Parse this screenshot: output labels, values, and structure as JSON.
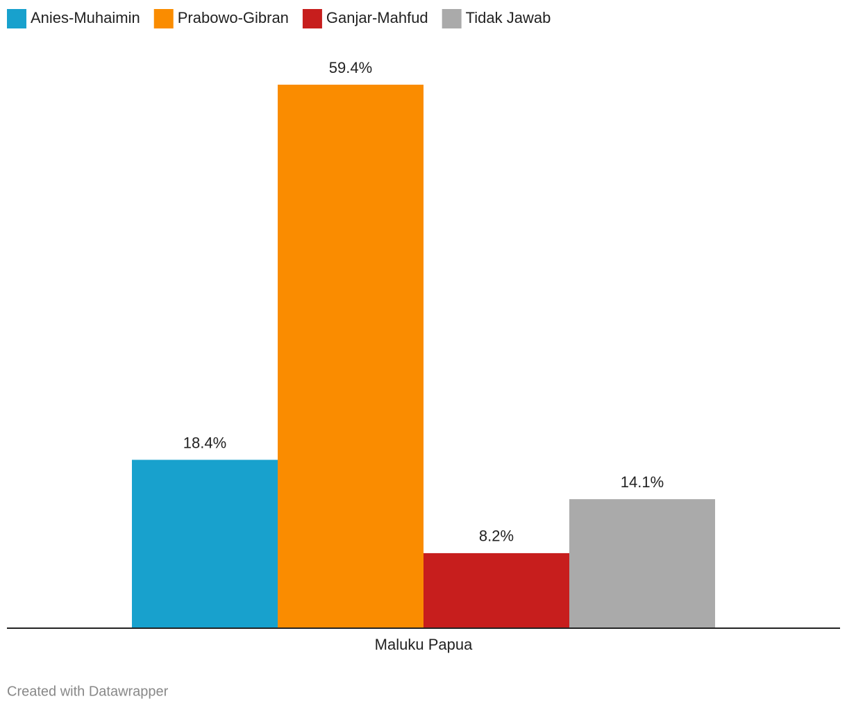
{
  "chart_data": {
    "type": "bar",
    "categories": [
      "Maluku Papua"
    ],
    "series": [
      {
        "name": "Anies-Muhaimin",
        "color": "#18a1cd",
        "values": [
          18.4
        ],
        "value_labels": [
          "18.4%"
        ]
      },
      {
        "name": "Prabowo-Gibran",
        "color": "#fa8c00",
        "values": [
          59.4
        ],
        "value_labels": [
          "59.4%"
        ]
      },
      {
        "name": "Ganjar-Mahfud",
        "color": "#c71e1d",
        "values": [
          8.2
        ],
        "value_labels": [
          "8.2%"
        ]
      },
      {
        "name": "Tidak Jawab",
        "color": "#aaaaaa",
        "values": [
          14.1
        ],
        "value_labels": [
          "14.1%"
        ]
      }
    ],
    "legend": "top-left",
    "footer": "Created with Datawrapper"
  }
}
